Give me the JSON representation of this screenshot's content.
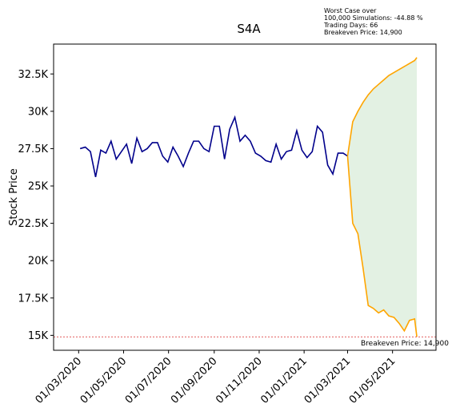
{
  "chart_data": {
    "type": "line",
    "title": "S4A",
    "ylabel": "Stock Price",
    "annotation": [
      "Worst Case over",
      "100,000 Simulations: -44.88 %",
      "Trading Days: 66",
      "Breakeven Price: 14,900"
    ],
    "breakeven": {
      "value": 14900,
      "label": "Breakeven Price: 14,900",
      "color": "#d62728"
    },
    "fill_color": "#e3f1e3",
    "series": [
      {
        "color": "#00008b",
        "x": [
          "2020-03-03",
          "2020-03-10",
          "2020-03-17",
          "2020-03-24",
          "2020-03-31",
          "2020-04-07",
          "2020-04-14",
          "2020-04-21",
          "2020-04-28",
          "2020-05-05",
          "2020-05-12",
          "2020-05-19",
          "2020-05-26",
          "2020-06-02",
          "2020-06-09",
          "2020-06-16",
          "2020-06-23",
          "2020-06-30",
          "2020-07-07",
          "2020-07-14",
          "2020-07-21",
          "2020-07-28",
          "2020-08-04",
          "2020-08-11",
          "2020-08-18",
          "2020-08-25",
          "2020-09-01",
          "2020-09-08",
          "2020-09-15",
          "2020-09-22",
          "2020-09-29",
          "2020-10-06",
          "2020-10-13",
          "2020-10-20",
          "2020-10-27",
          "2020-11-03",
          "2020-11-10",
          "2020-11-17",
          "2020-11-24",
          "2020-12-01",
          "2020-12-08",
          "2020-12-15",
          "2020-12-22",
          "2020-12-29",
          "2021-01-05",
          "2021-01-12",
          "2021-01-19",
          "2021-01-26",
          "2021-02-02",
          "2021-02-09",
          "2021-02-16",
          "2021-02-23",
          "2021-03-01"
        ],
        "values": [
          27500,
          27600,
          27300,
          25600,
          27400,
          27200,
          28000,
          26800,
          27300,
          27800,
          26500,
          28200,
          27300,
          27500,
          27900,
          27900,
          27000,
          26600,
          27600,
          27000,
          26300,
          27200,
          28000,
          28000,
          27500,
          27300,
          29000,
          29000,
          26800,
          28800,
          29600,
          28000,
          28400,
          28000,
          27200,
          27000,
          26700,
          26600,
          27800,
          26800,
          27300,
          27400,
          28700,
          27400,
          26900,
          27300,
          29000,
          28600,
          26400,
          25800,
          27200,
          27200,
          27000
        ]
      },
      {
        "color": "orange",
        "x": [
          "2021-03-01",
          "2021-03-08",
          "2021-03-15",
          "2021-03-22",
          "2021-03-29",
          "2021-04-05",
          "2021-04-12",
          "2021-04-19",
          "2021-04-26",
          "2021-05-03",
          "2021-05-10",
          "2021-05-17",
          "2021-05-24",
          "2021-05-31",
          "2021-06-03"
        ],
        "values": [
          27000,
          29300,
          30000,
          30600,
          31100,
          31500,
          31800,
          32100,
          32400,
          32600,
          32800,
          33000,
          33200,
          33400,
          33600
        ]
      },
      {
        "color": "orange",
        "x": [
          "2021-03-01",
          "2021-03-08",
          "2021-03-15",
          "2021-03-22",
          "2021-03-29",
          "2021-04-05",
          "2021-04-12",
          "2021-04-19",
          "2021-04-26",
          "2021-05-03",
          "2021-05-10",
          "2021-05-17",
          "2021-05-24",
          "2021-05-31",
          "2021-06-03"
        ],
        "values": [
          27000,
          22500,
          21800,
          19500,
          17000,
          16800,
          16500,
          16700,
          16300,
          16200,
          15800,
          15300,
          16000,
          16100,
          14900
        ]
      }
    ],
    "xlim": [
      "2020-01-27",
      "2021-06-29"
    ],
    "xticks": [
      {
        "value": "2020-03-01",
        "label": "01/03/2020"
      },
      {
        "value": "2020-05-01",
        "label": "01/05/2020"
      },
      {
        "value": "2020-07-01",
        "label": "01/07/2020"
      },
      {
        "value": "2020-09-01",
        "label": "01/09/2020"
      },
      {
        "value": "2020-11-01",
        "label": "01/11/2020"
      },
      {
        "value": "2021-01-01",
        "label": "01/01/2021"
      },
      {
        "value": "2021-03-01",
        "label": "01/03/2021"
      },
      {
        "value": "2021-05-01",
        "label": "01/05/2021"
      }
    ],
    "ylim": [
      14000,
      34500
    ],
    "yticks": [
      {
        "value": 15000,
        "label": "15K"
      },
      {
        "value": 17500,
        "label": "17.5K"
      },
      {
        "value": 20000,
        "label": "20K"
      },
      {
        "value": 22500,
        "label": "22.5K"
      },
      {
        "value": 25000,
        "label": "25K"
      },
      {
        "value": 27500,
        "label": "27.5K"
      },
      {
        "value": 30000,
        "label": "30K"
      },
      {
        "value": 32500,
        "label": "32.5K"
      }
    ]
  }
}
